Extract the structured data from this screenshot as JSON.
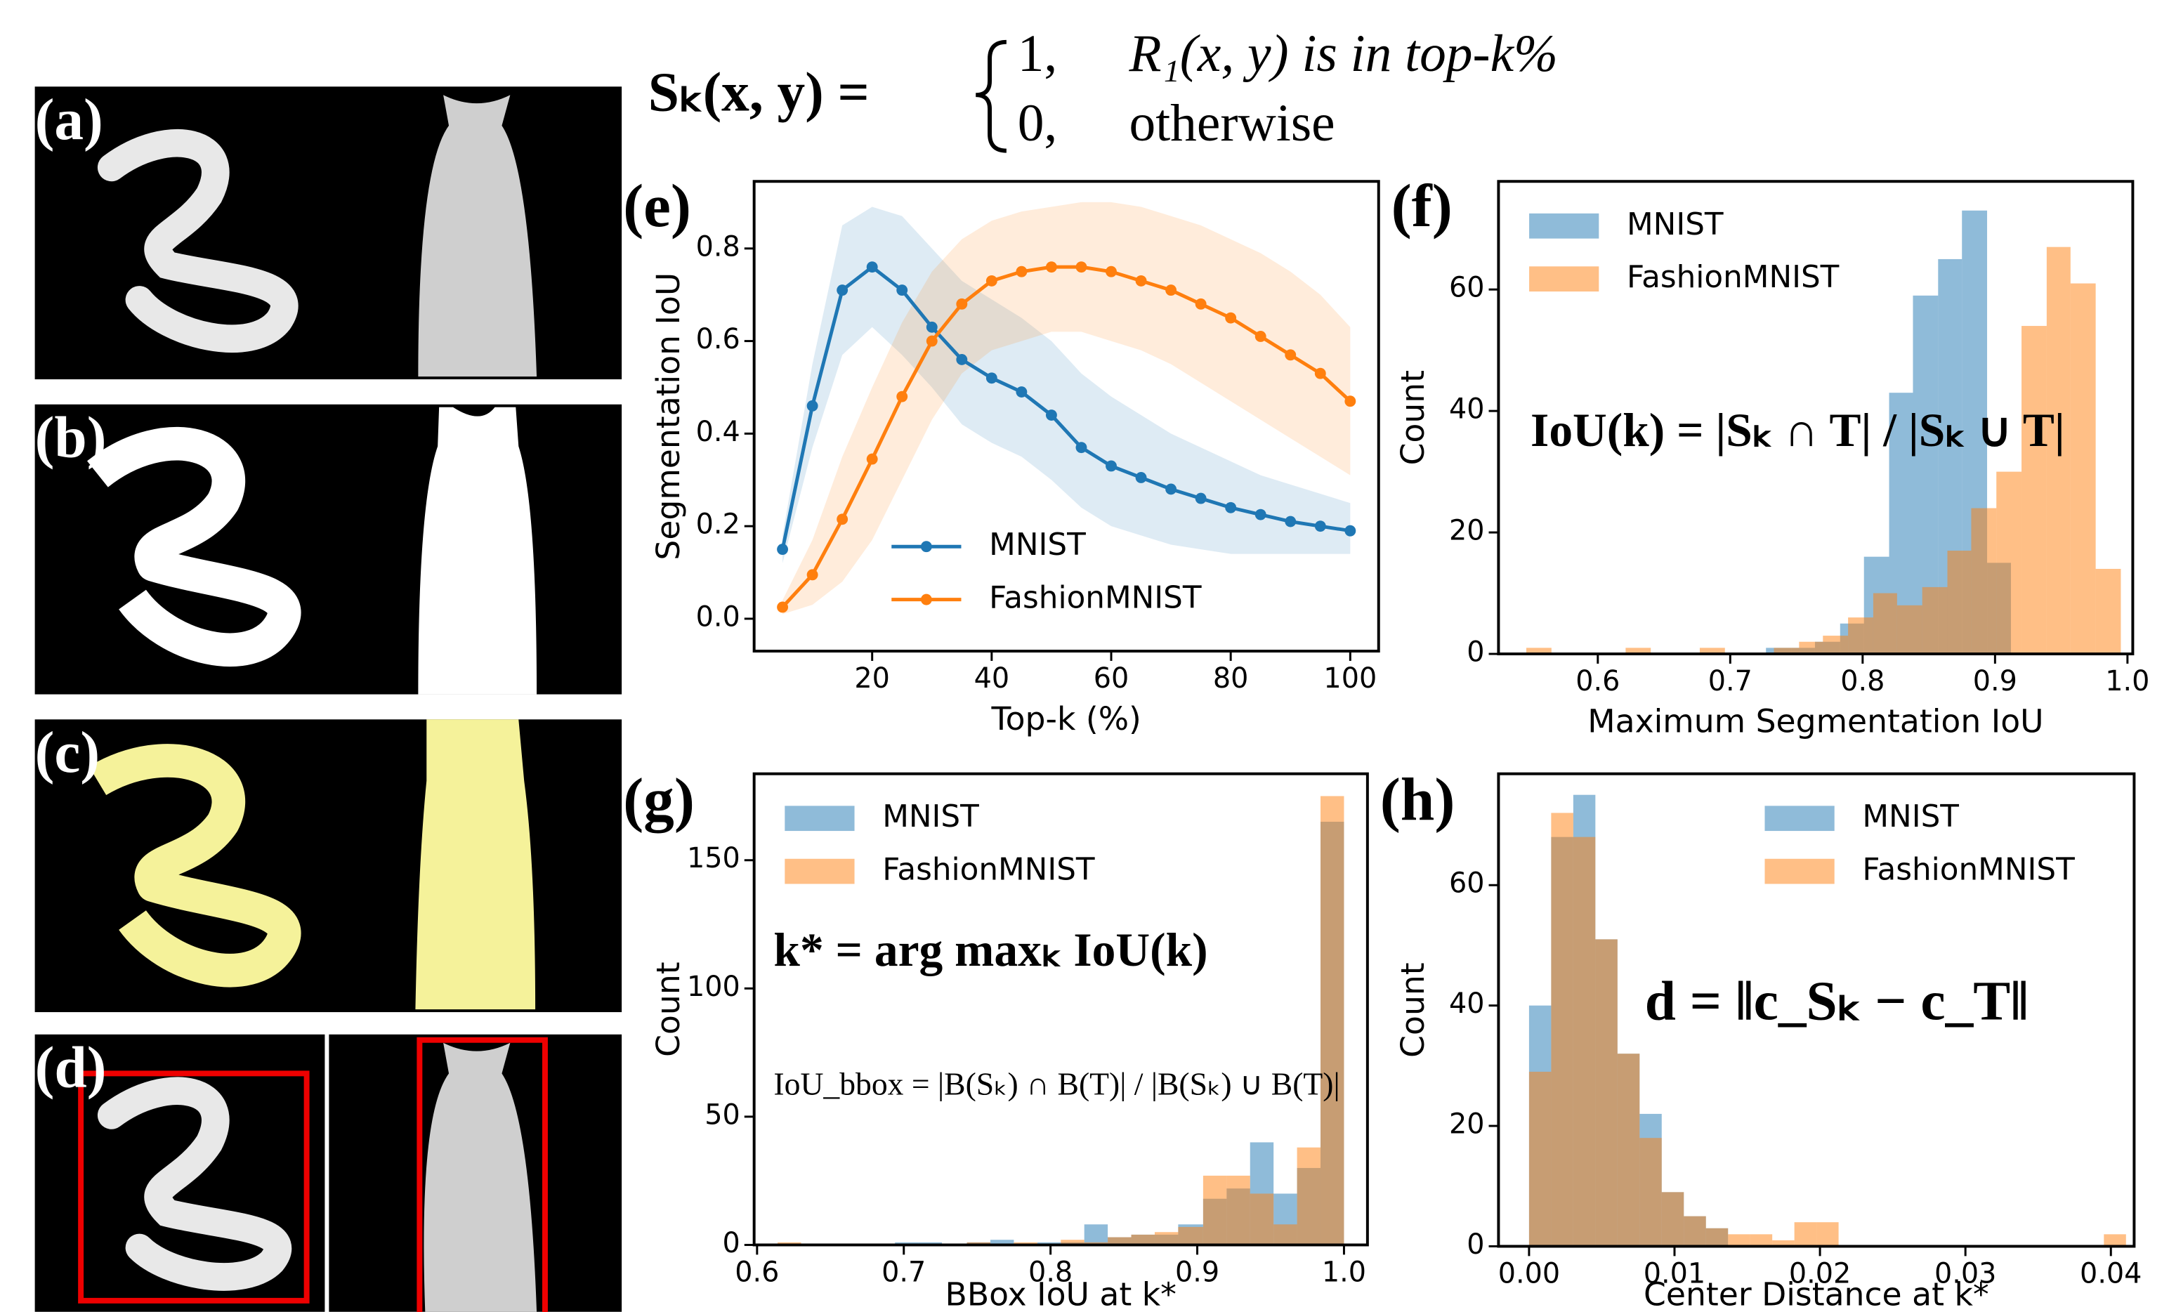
{
  "panels": [
    "(a)",
    "(b)",
    "(c)",
    "(d)"
  ],
  "equation": {
    "lhs": "Sₖ(x, y) =",
    "cases": [
      [
        "1,",
        "R₁(x, y) is in top-k%"
      ],
      [
        "0,",
        "otherwise"
      ]
    ]
  },
  "chart_data": [
    {
      "type": "line",
      "panel": "(e)",
      "x_label": "Top-k (%)",
      "y_label": "Segmentation IoU",
      "legend": "lower center",
      "x": [
        5,
        10,
        15,
        20,
        25,
        30,
        35,
        40,
        45,
        50,
        55,
        60,
        65,
        70,
        75,
        80,
        85,
        90,
        95,
        100
      ],
      "series": [
        {
          "name": "MNIST",
          "color": "#1f77b4",
          "values": [
            0.15,
            0.46,
            0.71,
            0.76,
            0.71,
            0.63,
            0.56,
            0.52,
            0.49,
            0.44,
            0.37,
            0.33,
            0.305,
            0.28,
            0.26,
            0.24,
            0.225,
            0.21,
            0.2,
            0.19
          ],
          "upper": [
            0.18,
            0.55,
            0.85,
            0.89,
            0.87,
            0.8,
            0.73,
            0.69,
            0.65,
            0.6,
            0.53,
            0.48,
            0.44,
            0.4,
            0.37,
            0.34,
            0.31,
            0.29,
            0.27,
            0.25
          ],
          "lower": [
            0.12,
            0.37,
            0.57,
            0.63,
            0.57,
            0.5,
            0.42,
            0.38,
            0.35,
            0.3,
            0.24,
            0.2,
            0.18,
            0.16,
            0.15,
            0.14,
            0.14,
            0.14,
            0.14,
            0.14
          ]
        },
        {
          "name": "FashionMNIST",
          "color": "#ff7f0e",
          "values": [
            0.025,
            0.095,
            0.215,
            0.345,
            0.48,
            0.6,
            0.68,
            0.73,
            0.75,
            0.76,
            0.76,
            0.75,
            0.73,
            0.71,
            0.68,
            0.65,
            0.61,
            0.57,
            0.53,
            0.47
          ],
          "upper": [
            0.04,
            0.17,
            0.35,
            0.5,
            0.64,
            0.75,
            0.82,
            0.86,
            0.88,
            0.89,
            0.9,
            0.9,
            0.89,
            0.87,
            0.85,
            0.82,
            0.79,
            0.75,
            0.7,
            0.63
          ],
          "lower": [
            0.01,
            0.03,
            0.08,
            0.17,
            0.3,
            0.43,
            0.53,
            0.58,
            0.6,
            0.62,
            0.62,
            0.6,
            0.58,
            0.55,
            0.51,
            0.47,
            0.43,
            0.39,
            0.35,
            0.31
          ]
        }
      ],
      "xlim": [
        0.25,
        104.75
      ],
      "ylim": [
        -0.07,
        0.945
      ],
      "xticks": [
        20,
        40,
        60,
        80,
        100
      ],
      "yticks": [
        {
          "value": 0,
          "label": "0.0"
        },
        0.2,
        0.4,
        0.6,
        0.8
      ]
    },
    {
      "type": "histogram",
      "panel": "(f)",
      "x_label": "Maximum Segmentation IoU",
      "y_label": "Count",
      "legend": "upper left",
      "annotations": [
        "IoU(k) = |Sₖ ∩ T| / |Sₖ ∪ T|"
      ],
      "series": [
        {
          "name": "MNIST",
          "color": "#1f77b4",
          "bins": [
            0.727,
            0.746,
            0.764,
            0.783,
            0.801,
            0.82,
            0.838,
            0.857,
            0.875,
            0.894,
            0.912
          ],
          "values": [
            1,
            1,
            2,
            5,
            16,
            43,
            59,
            65,
            73,
            15
          ]
        },
        {
          "name": "FashionMNIST",
          "color": "#ff7f0e",
          "bins": [
            0.546,
            0.565,
            0.583,
            0.602,
            0.621,
            0.64,
            0.658,
            0.677,
            0.696,
            0.714,
            0.733,
            0.752,
            0.77,
            0.789,
            0.808,
            0.826,
            0.845,
            0.864,
            0.882,
            0.901,
            0.92,
            0.939,
            0.957,
            0.976,
            0.995
          ],
          "values": [
            1,
            0,
            0,
            0,
            1,
            0,
            0,
            1,
            0,
            0,
            1,
            2,
            3,
            6,
            10,
            8,
            11,
            17,
            24,
            30,
            54,
            67,
            61,
            14
          ]
        }
      ],
      "xlim": [
        0.525,
        1.004
      ],
      "ylim": [
        0,
        77.8
      ],
      "xticks": [
        0.6,
        0.7,
        0.8,
        0.9,
        {
          "value": 1,
          "label": "1.0"
        }
      ],
      "yticks": [
        0,
        20,
        40,
        60
      ]
    },
    {
      "type": "histogram",
      "panel": "(g)",
      "x_label": "BBox IoU at k*",
      "y_label": "Count",
      "legend": "upper left",
      "annotations": [
        "k* = arg maxₖ IoU(k)",
        "IoU_bbox = |B(Sₖ) ∩ B(T)| / |B(Sₖ) ∪ B(T)|"
      ],
      "series": [
        {
          "name": "MNIST",
          "color": "#1f77b4",
          "bins": [
            0.614,
            0.63,
            0.646,
            0.662,
            0.678,
            0.694,
            0.71,
            0.726,
            0.743,
            0.759,
            0.775,
            0.791,
            0.807,
            0.823,
            0.839,
            0.855,
            0.871,
            0.887,
            0.904,
            0.92,
            0.936,
            0.952,
            0.968,
            0.984,
            1.0
          ],
          "values": [
            0,
            0,
            0,
            0,
            0,
            1,
            1,
            0,
            1,
            2,
            0,
            1,
            1,
            8,
            3,
            4,
            4,
            8,
            18,
            22,
            40,
            20,
            30,
            165
          ]
        },
        {
          "name": "FashionMNIST",
          "color": "#ff7f0e",
          "bins": [
            0.614,
            0.63,
            0.646,
            0.662,
            0.678,
            0.694,
            0.71,
            0.726,
            0.743,
            0.759,
            0.775,
            0.791,
            0.807,
            0.823,
            0.839,
            0.855,
            0.871,
            0.887,
            0.904,
            0.92,
            0.936,
            0.952,
            0.968,
            0.984,
            1.0
          ],
          "values": [
            1,
            0,
            0,
            0,
            0,
            0,
            0,
            0,
            1,
            0,
            1,
            0,
            2,
            1,
            3,
            4,
            5,
            7,
            27,
            27,
            20,
            8,
            38,
            175
          ]
        }
      ],
      "xlim": [
        0.598,
        1.016
      ],
      "ylim": [
        0,
        183.7
      ],
      "xticks": [
        0.6,
        0.7,
        0.8,
        0.9,
        {
          "value": 1,
          "label": "1.0"
        }
      ],
      "yticks": [
        0,
        50,
        100,
        150
      ]
    },
    {
      "type": "histogram",
      "panel": "(h)",
      "x_label": "Center Distance at k*",
      "y_label": "Count",
      "legend": "upper right",
      "annotations": [
        "d = ‖c_Sₖ − c_T‖"
      ],
      "series": [
        {
          "name": "MNIST",
          "color": "#1f77b4",
          "bins": [
            0,
            0.00152,
            0.00304,
            0.00456,
            0.00608,
            0.0076,
            0.00912,
            0.01064,
            0.01216,
            0.01368
          ],
          "values": [
            40,
            68,
            75,
            51,
            32,
            22,
            9,
            5,
            3
          ]
        },
        {
          "name": "FashionMNIST",
          "color": "#ff7f0e",
          "bins": [
            0,
            0.00152,
            0.00304,
            0.00456,
            0.00608,
            0.0076,
            0.00912,
            0.01064,
            0.01216,
            0.01368,
            0.0152,
            0.01672,
            0.01824,
            0.01976,
            0.02128,
            0.0228,
            0.02432,
            0.02584,
            0.02736,
            0.02888,
            0.0304,
            0.03192,
            0.03344,
            0.03496,
            0.03648,
            0.038,
            0.03952,
            0.04104
          ],
          "values": [
            29,
            72,
            68,
            51,
            32,
            18,
            9,
            5,
            3,
            2,
            2,
            1,
            4,
            4,
            0,
            0,
            0,
            0,
            0,
            0,
            0,
            0,
            0,
            0,
            0,
            0,
            2
          ]
        }
      ],
      "xlim": [
        -0.0021,
        0.0416
      ],
      "ylim": [
        0,
        78.5
      ],
      "xticks": [
        {
          "value": 0,
          "label": "0.00"
        },
        0.01,
        0.02,
        0.03,
        0.04
      ],
      "yticks": [
        0,
        20,
        40,
        60
      ]
    }
  ]
}
